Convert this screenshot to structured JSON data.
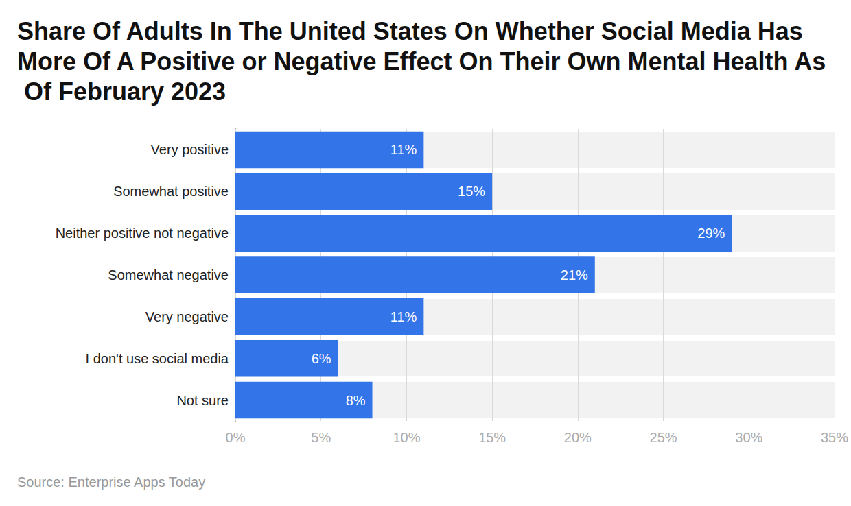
{
  "chart_data": {
    "type": "bar",
    "title": "Share Of Adults In The United States On Whether Social Media Has More Of A Positive or Negative Effect On Their Own Mental Health As Of February 2023",
    "source": "Source: Enterprise Apps Today",
    "orientation": "horizontal",
    "categories": [
      "Very positive",
      "Somewhat positive",
      "Neither positive not negative",
      "Somewhat negative",
      "Very negative",
      "I don't use social media",
      "Not sure"
    ],
    "values": [
      11,
      15,
      29,
      21,
      11,
      6,
      8
    ],
    "value_labels": [
      "11%",
      "15%",
      "29%",
      "21%",
      "11%",
      "6%",
      "8%"
    ],
    "color": "#3375e8",
    "xlim": [
      0,
      35
    ],
    "xticks": [
      {
        "value": 0,
        "label": "0%"
      },
      {
        "value": 5,
        "label": "5%"
      },
      {
        "value": 10,
        "label": "10%"
      },
      {
        "value": 15,
        "label": "15%"
      },
      {
        "value": 20,
        "label": "20%"
      },
      {
        "value": 25,
        "label": "25%"
      },
      {
        "value": 30,
        "label": "30%"
      },
      {
        "value": 35,
        "label": "35%"
      }
    ],
    "grid": true,
    "data_labels": true
  }
}
